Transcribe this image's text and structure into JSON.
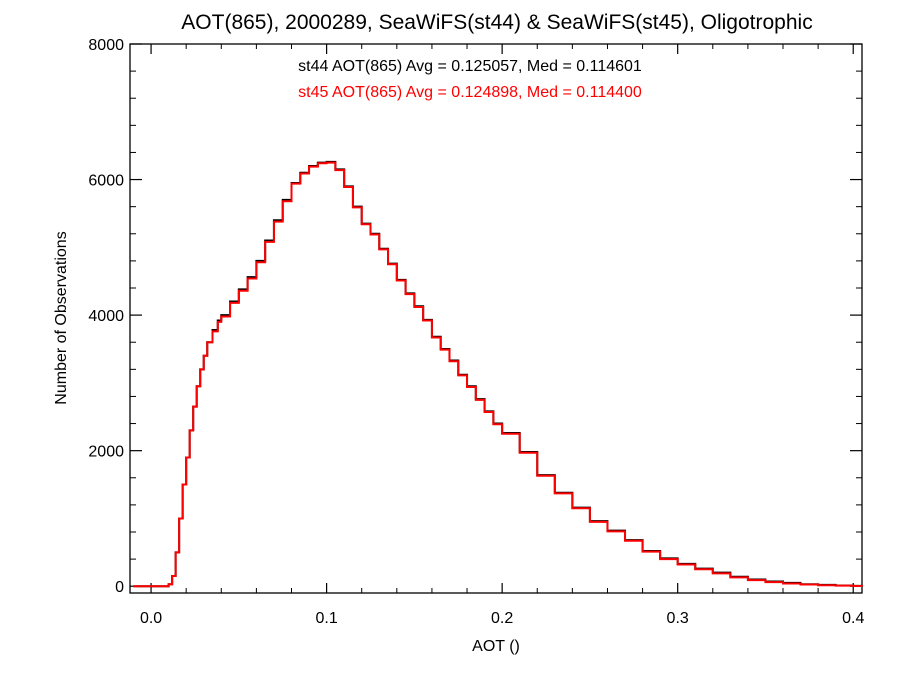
{
  "chart_data": {
    "type": "line",
    "step": true,
    "title": "AOT(865), 2000289, SeaWiFS(st44) & SeaWiFS(st45), Oligotrophic",
    "xlabel": "AOT ()",
    "ylabel": "Number of Observations",
    "xlim": [
      -0.012,
      0.405
    ],
    "ylim": [
      -100,
      8000
    ],
    "xticks": [
      0.0,
      0.1,
      0.2,
      0.3,
      0.4
    ],
    "xtick_labels": [
      "0.0",
      "0.1",
      "0.2",
      "0.3",
      "0.4"
    ],
    "yticks": [
      0,
      2000,
      4000,
      6000,
      8000
    ],
    "ytick_labels": [
      "0",
      "2000",
      "4000",
      "6000",
      "8000"
    ],
    "grid": false,
    "annotations": [
      {
        "text": "st44 AOT(865) Avg = 0.125057, Med = 0.114601",
        "color": "#000000"
      },
      {
        "text": "st45 AOT(865) Avg = 0.124898, Med = 0.114400",
        "color": "#ff0000"
      }
    ],
    "x": [
      -0.01,
      0.0,
      0.005,
      0.01,
      0.012,
      0.014,
      0.016,
      0.018,
      0.02,
      0.022,
      0.024,
      0.026,
      0.028,
      0.03,
      0.032,
      0.035,
      0.038,
      0.04,
      0.045,
      0.05,
      0.055,
      0.06,
      0.065,
      0.07,
      0.075,
      0.08,
      0.085,
      0.09,
      0.095,
      0.1,
      0.105,
      0.11,
      0.115,
      0.12,
      0.125,
      0.13,
      0.135,
      0.14,
      0.145,
      0.15,
      0.155,
      0.16,
      0.165,
      0.17,
      0.175,
      0.18,
      0.185,
      0.19,
      0.195,
      0.2,
      0.21,
      0.22,
      0.23,
      0.24,
      0.25,
      0.26,
      0.27,
      0.28,
      0.29,
      0.3,
      0.31,
      0.32,
      0.33,
      0.34,
      0.35,
      0.36,
      0.37,
      0.38,
      0.39,
      0.4,
      0.405
    ],
    "series": [
      {
        "name": "st44",
        "color": "#000000",
        "values": [
          0,
          0,
          0,
          30,
          150,
          500,
          1000,
          1500,
          1900,
          2300,
          2650,
          2950,
          3200,
          3400,
          3600,
          3780,
          3920,
          4000,
          4200,
          4380,
          4560,
          4800,
          5100,
          5400,
          5700,
          5950,
          6100,
          6200,
          6250,
          6260,
          6150,
          5900,
          5600,
          5350,
          5200,
          4980,
          4760,
          4520,
          4320,
          4130,
          3930,
          3680,
          3500,
          3330,
          3120,
          2950,
          2760,
          2580,
          2400,
          2260,
          1980,
          1640,
          1380,
          1160,
          960,
          820,
          680,
          520,
          410,
          330,
          260,
          200,
          140,
          100,
          70,
          50,
          30,
          20,
          10,
          5,
          0
        ]
      },
      {
        "name": "st45",
        "color": "#ff0000",
        "values": [
          0,
          0,
          0,
          30,
          150,
          500,
          1000,
          1500,
          1900,
          2300,
          2650,
          2950,
          3200,
          3400,
          3600,
          3760,
          3900,
          3980,
          4180,
          4360,
          4540,
          4780,
          5080,
          5380,
          5680,
          5940,
          6090,
          6190,
          6240,
          6250,
          6140,
          5890,
          5590,
          5340,
          5190,
          4970,
          4750,
          4510,
          4310,
          4120,
          3920,
          3670,
          3490,
          3320,
          3110,
          2940,
          2750,
          2570,
          2390,
          2250,
          1970,
          1630,
          1370,
          1150,
          950,
          810,
          670,
          510,
          400,
          320,
          250,
          190,
          130,
          90,
          60,
          40,
          25,
          15,
          8,
          3,
          0
        ]
      }
    ]
  }
}
